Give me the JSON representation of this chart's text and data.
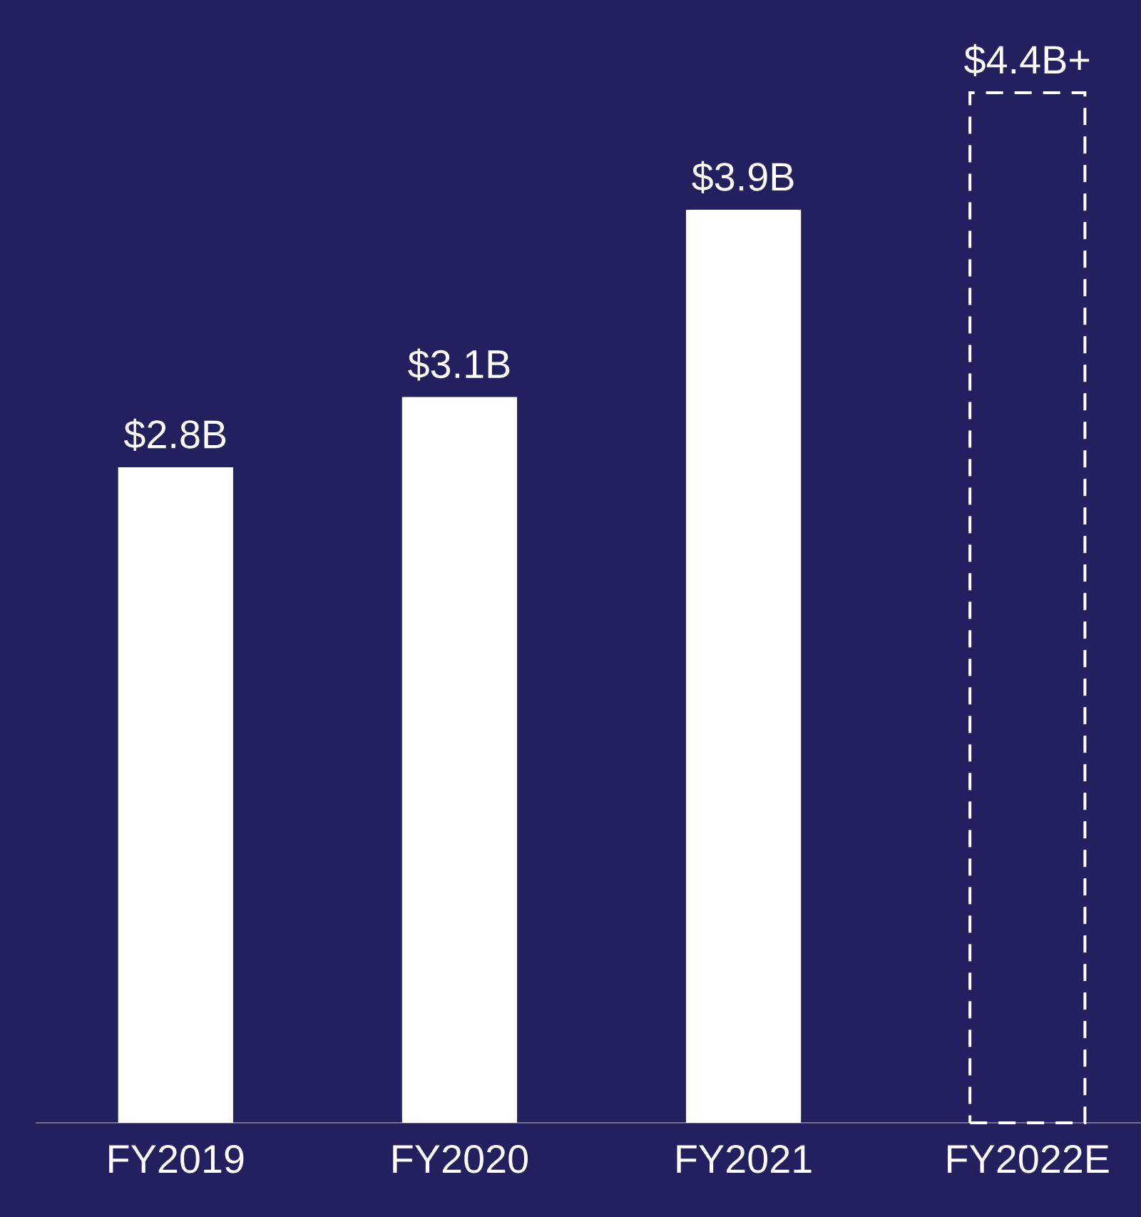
{
  "chart_data": {
    "type": "bar",
    "categories": [
      "FY2019",
      "FY2020",
      "FY2021",
      "FY2022E"
    ],
    "series": [
      {
        "color": "#ffffff",
        "values": [
          2.8,
          3.1,
          3.9,
          null
        ],
        "value_labels": [
          "$2.8B",
          "$3.1B",
          "$3.9B",
          null
        ]
      },
      {
        "color": "#ffffff",
        "line_style": "dashed",
        "values": [
          null,
          null,
          null,
          4.4
        ],
        "value_labels": [
          null,
          null,
          null,
          "$4.4B+"
        ]
      }
    ],
    "orientation": "vertical"
  }
}
